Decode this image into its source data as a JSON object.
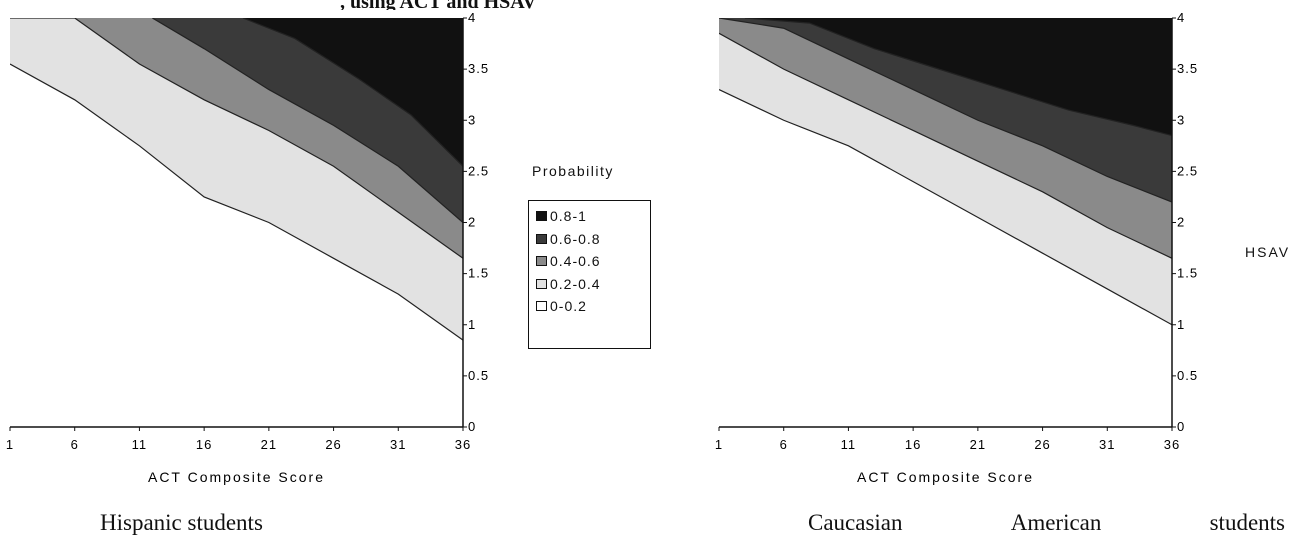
{
  "partial_title": ", using ACT and HSAV",
  "legend": {
    "title": "Probability",
    "items": [
      {
        "label": "0.8-1",
        "color": "#111111"
      },
      {
        "label": "0.6-0.8",
        "color": "#3a3a3a"
      },
      {
        "label": "0.4-0.6",
        "color": "#8a8a8a"
      },
      {
        "label": "0.2-0.4",
        "color": "#e2e2e2"
      },
      {
        "label": "0-0.2",
        "color": "#ffffff"
      }
    ]
  },
  "y_axis_label": "HSAV",
  "chart_data": [
    {
      "type": "heatmap",
      "caption": "Hispanic students",
      "xlabel": "ACT Composite Score",
      "x_ticks": [
        "1",
        "6",
        "11",
        "16",
        "21",
        "26",
        "31",
        "36"
      ],
      "y_ticks": [
        "0",
        "0.5",
        "1",
        "1.5",
        "2",
        "2.5",
        "3",
        "3.5",
        "4"
      ],
      "xlim": [
        1,
        36
      ],
      "ylim": [
        0,
        4
      ],
      "boundaries": [
        {
          "between": "0-0.2|0.2-0.4",
          "points": [
            [
              1,
              3.55
            ],
            [
              6,
              3.2
            ],
            [
              11,
              2.75
            ],
            [
              16,
              2.25
            ],
            [
              21,
              2.0
            ],
            [
              26,
              1.65
            ],
            [
              31,
              1.3
            ],
            [
              36,
              0.85
            ]
          ]
        },
        {
          "between": "0.2-0.4|0.4-0.6",
          "points": [
            [
              1,
              4.0
            ],
            [
              6,
              4.0
            ],
            [
              11,
              3.55
            ],
            [
              16,
              3.2
            ],
            [
              21,
              2.9
            ],
            [
              26,
              2.55
            ],
            [
              31,
              2.1
            ],
            [
              36,
              1.65
            ]
          ]
        },
        {
          "between": "0.4-0.6|0.6-0.8",
          "points": [
            [
              12,
              4.0
            ],
            [
              16,
              3.7
            ],
            [
              21,
              3.3
            ],
            [
              26,
              2.95
            ],
            [
              31,
              2.55
            ],
            [
              36,
              2.0
            ]
          ]
        },
        {
          "between": "0.6-0.8|0.8-1",
          "points": [
            [
              19,
              4.0
            ],
            [
              23,
              3.8
            ],
            [
              28,
              3.4
            ],
            [
              32,
              3.05
            ],
            [
              36,
              2.55
            ]
          ]
        }
      ]
    },
    {
      "type": "heatmap",
      "caption": "Caucasian American students",
      "xlabel": "ACT Composite Score",
      "x_ticks": [
        "1",
        "6",
        "11",
        "16",
        "21",
        "26",
        "31",
        "36"
      ],
      "y_ticks": [
        "0",
        "0.5",
        "1",
        "1.5",
        "2",
        "2.5",
        "3",
        "3.5",
        "4"
      ],
      "xlim": [
        1,
        36
      ],
      "ylim": [
        0,
        4
      ],
      "boundaries": [
        {
          "between": "0-0.2|0.2-0.4",
          "points": [
            [
              1,
              3.3
            ],
            [
              6,
              3.0
            ],
            [
              11,
              2.75
            ],
            [
              16,
              2.4
            ],
            [
              21,
              2.05
            ],
            [
              26,
              1.7
            ],
            [
              31,
              1.35
            ],
            [
              36,
              1.0
            ]
          ]
        },
        {
          "between": "0.2-0.4|0.4-0.6",
          "points": [
            [
              1,
              3.85
            ],
            [
              6,
              3.5
            ],
            [
              11,
              3.2
            ],
            [
              16,
              2.9
            ],
            [
              21,
              2.6
            ],
            [
              26,
              2.3
            ],
            [
              31,
              1.95
            ],
            [
              36,
              1.65
            ]
          ]
        },
        {
          "between": "0.4-0.6|0.6-0.8",
          "points": [
            [
              1,
              4.0
            ],
            [
              6,
              3.9
            ],
            [
              11,
              3.6
            ],
            [
              16,
              3.3
            ],
            [
              21,
              3.0
            ],
            [
              26,
              2.75
            ],
            [
              31,
              2.45
            ],
            [
              36,
              2.2
            ]
          ]
        },
        {
          "between": "0.6-0.8|0.8-1",
          "points": [
            [
              3,
              4.0
            ],
            [
              8,
              3.95
            ],
            [
              13,
              3.7
            ],
            [
              18,
              3.5
            ],
            [
              23,
              3.3
            ],
            [
              28,
              3.1
            ],
            [
              33,
              2.95
            ],
            [
              36,
              2.85
            ]
          ]
        }
      ]
    }
  ]
}
